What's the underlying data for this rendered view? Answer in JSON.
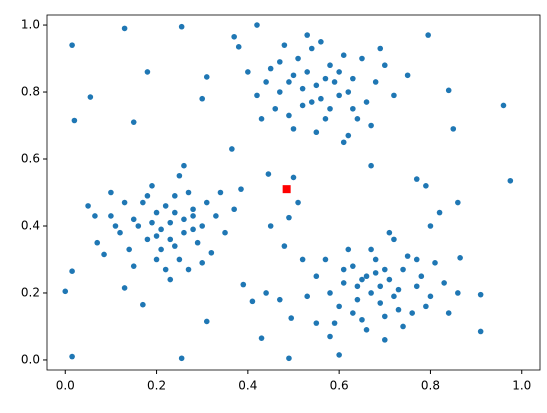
{
  "chart_data": {
    "type": "scatter",
    "xlim": [
      -0.04,
      1.04
    ],
    "ylim": [
      -0.03,
      1.03
    ],
    "xticks": [
      {
        "value": 0,
        "label": "0.0"
      },
      0.2,
      0.4,
      0.6,
      0.8,
      {
        "value": 1,
        "label": "1.0"
      }
    ],
    "yticks": [
      {
        "value": 0,
        "label": "0.0"
      },
      0.2,
      0.4,
      0.6,
      0.8,
      {
        "value": 1,
        "label": "1.0"
      }
    ],
    "series": [
      {
        "color": "#1f77b4",
        "marker": "circle",
        "x": [
          0.0,
          0.015,
          0.02,
          0.015,
          0.015,
          0.055,
          0.13,
          0.18,
          0.15,
          0.255,
          0.255,
          0.31,
          0.31,
          0.42,
          0.43,
          0.49,
          0.365,
          0.49,
          0.51,
          0.5,
          0.445,
          0.385,
          0.6,
          0.795,
          0.84,
          0.85,
          0.86,
          0.96,
          0.975,
          0.91,
          0.91,
          0.865,
          0.77,
          0.79,
          0.82,
          0.8,
          0.1,
          0.05,
          0.065,
          0.07,
          0.085,
          0.13,
          0.17,
          0.39,
          0.41,
          0.44,
          0.45,
          0.48,
          0.52,
          0.495,
          0.55,
          0.58,
          0.37,
          0.38,
          0.3,
          0.47,
          0.67,
          0.62,
          0.23,
          0.2,
          0.26,
          0.18,
          0.28,
          0.24,
          0.15,
          0.21,
          0.3,
          0.25,
          0.17,
          0.27,
          0.12,
          0.33,
          0.22,
          0.19,
          0.29,
          0.14,
          0.24,
          0.21,
          0.26,
          0.31,
          0.16,
          0.23,
          0.27,
          0.2,
          0.35,
          0.1,
          0.25,
          0.18,
          0.32,
          0.13,
          0.22,
          0.28,
          0.19,
          0.24,
          0.26,
          0.37,
          0.15,
          0.3,
          0.11,
          0.34,
          0.2,
          0.23,
          0.28,
          0.55,
          0.5,
          0.6,
          0.52,
          0.58,
          0.47,
          0.63,
          0.54,
          0.45,
          0.57,
          0.66,
          0.49,
          0.61,
          0.53,
          0.68,
          0.42,
          0.56,
          0.51,
          0.64,
          0.59,
          0.46,
          0.7,
          0.55,
          0.48,
          0.62,
          0.52,
          0.44,
          0.58,
          0.65,
          0.5,
          0.6,
          0.53,
          0.72,
          0.4,
          0.57,
          0.63,
          0.49,
          0.67,
          0.54,
          0.75,
          0.43,
          0.61,
          0.56,
          0.69,
          0.47,
          0.69,
          0.66,
          0.72,
          0.64,
          0.74,
          0.68,
          0.61,
          0.7,
          0.77,
          0.63,
          0.73,
          0.67,
          0.71,
          0.58,
          0.8,
          0.65,
          0.75,
          0.62,
          0.69,
          0.78,
          0.6,
          0.72,
          0.66,
          0.83,
          0.55,
          0.7,
          0.76,
          0.64,
          0.68,
          0.73,
          0.57,
          0.81,
          0.63,
          0.71,
          0.79,
          0.59,
          0.67,
          0.74,
          0.86,
          0.53,
          0.65,
          0.7,
          0.77,
          0.61,
          0.84
        ],
        "values": [
          0.205,
          0.94,
          0.715,
          0.265,
          0.01,
          0.785,
          0.99,
          0.86,
          0.71,
          0.995,
          0.005,
          0.115,
          0.845,
          1.0,
          0.065,
          0.005,
          0.63,
          0.425,
          0.47,
          0.545,
          0.555,
          0.51,
          0.015,
          0.97,
          0.805,
          0.69,
          0.47,
          0.76,
          0.535,
          0.195,
          0.085,
          0.305,
          0.54,
          0.52,
          0.44,
          0.4,
          0.5,
          0.46,
          0.43,
          0.35,
          0.315,
          0.215,
          0.165,
          0.225,
          0.175,
          0.2,
          0.4,
          0.34,
          0.3,
          0.125,
          0.11,
          0.07,
          0.965,
          0.935,
          0.78,
          0.18,
          0.58,
          0.67,
          0.41,
          0.44,
          0.38,
          0.36,
          0.45,
          0.49,
          0.42,
          0.33,
          0.4,
          0.3,
          0.47,
          0.5,
          0.38,
          0.43,
          0.27,
          0.52,
          0.35,
          0.33,
          0.44,
          0.39,
          0.42,
          0.47,
          0.4,
          0.36,
          0.27,
          0.3,
          0.38,
          0.43,
          0.55,
          0.49,
          0.32,
          0.47,
          0.46,
          0.39,
          0.41,
          0.34,
          0.58,
          0.45,
          0.28,
          0.29,
          0.4,
          0.5,
          0.37,
          0.24,
          0.43,
          0.82,
          0.85,
          0.79,
          0.76,
          0.88,
          0.8,
          0.84,
          0.93,
          0.87,
          0.72,
          0.77,
          0.73,
          0.91,
          0.86,
          0.83,
          0.79,
          0.78,
          0.9,
          0.72,
          0.83,
          0.75,
          0.88,
          0.68,
          0.94,
          0.8,
          0.81,
          0.83,
          0.75,
          0.9,
          0.69,
          0.86,
          0.97,
          0.79,
          0.86,
          0.84,
          0.75,
          0.83,
          0.7,
          0.77,
          0.85,
          0.72,
          0.65,
          0.95,
          0.93,
          0.89,
          0.22,
          0.25,
          0.19,
          0.18,
          0.27,
          0.3,
          0.23,
          0.13,
          0.22,
          0.28,
          0.15,
          0.2,
          0.24,
          0.2,
          0.19,
          0.12,
          0.31,
          0.33,
          0.17,
          0.25,
          0.16,
          0.36,
          0.09,
          0.23,
          0.25,
          0.27,
          0.14,
          0.22,
          0.26,
          0.21,
          0.3,
          0.29,
          0.14,
          0.38,
          0.16,
          0.11,
          0.33,
          0.1,
          0.2,
          0.19,
          0.24,
          0.06,
          0.3,
          0.27,
          0.14
        ]
      },
      {
        "color": "#ff0000",
        "marker": "square",
        "x": [
          0.485
        ],
        "values": [
          0.51
        ]
      }
    ]
  }
}
